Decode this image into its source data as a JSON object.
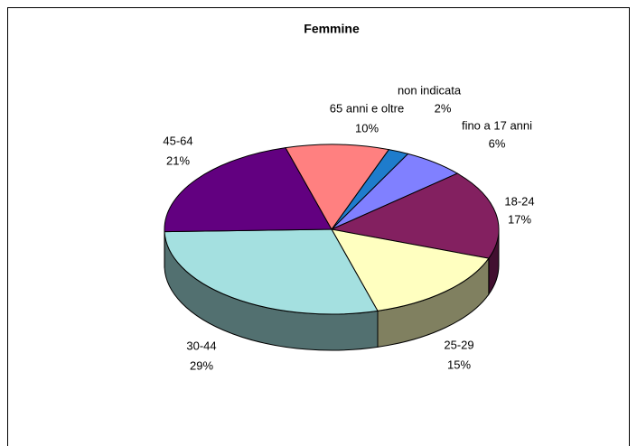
{
  "chart_data": {
    "type": "pie",
    "title": "Femmine",
    "categories": [
      "non indicata",
      "fino a 17 anni",
      "18-24",
      "25-29",
      "30-44",
      "45-64",
      "65 anni  e oltre"
    ],
    "values": [
      2,
      6,
      17,
      15,
      29,
      21,
      10
    ],
    "value_labels": [
      "2%",
      "6%",
      "17%",
      "15%",
      "29%",
      "21%",
      "10%"
    ],
    "colors": [
      "#1e7ccc",
      "#8080ff",
      "#832060",
      "#ffffc0",
      "#a4e0e0",
      "#620080",
      "#ff8080"
    ]
  }
}
